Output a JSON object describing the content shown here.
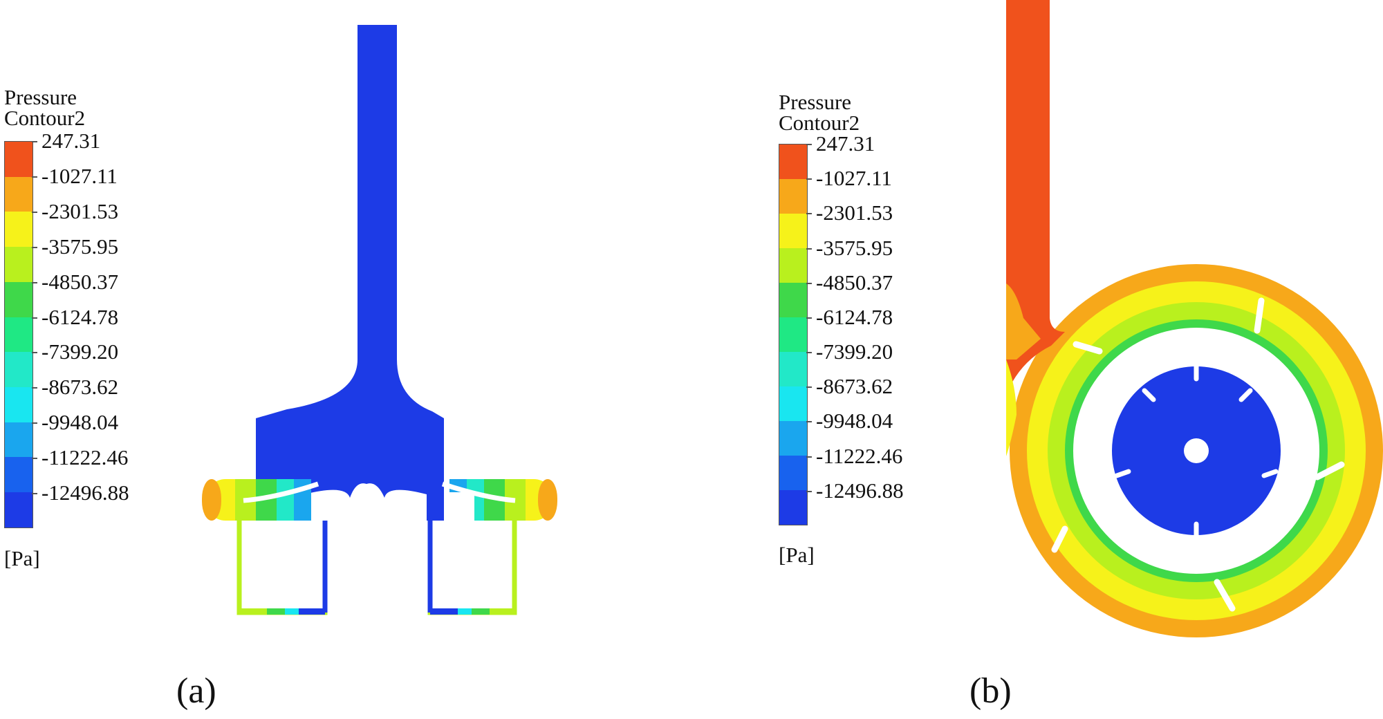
{
  "palette": [
    "#f0521c",
    "#f7a81a",
    "#f6f21a",
    "#b9f01e",
    "#3fd84a",
    "#1fe884",
    "#22e8c8",
    "#19e6f0",
    "#1aa6ee",
    "#1862ee",
    "#1d3be6"
  ],
  "legend": {
    "title_line1": "Pressure",
    "title_line2": "Contour2",
    "unit": "[Pa]",
    "values": [
      "247.31",
      "-1027.11",
      "-2301.53",
      "-3575.95",
      "-4850.37",
      "-6124.78",
      "-7399.20",
      "-8673.62",
      "-9948.04",
      "-11222.46",
      "-12496.88"
    ]
  },
  "panels": {
    "a": {
      "caption": "(a)"
    },
    "b": {
      "caption": "(b)"
    }
  }
}
